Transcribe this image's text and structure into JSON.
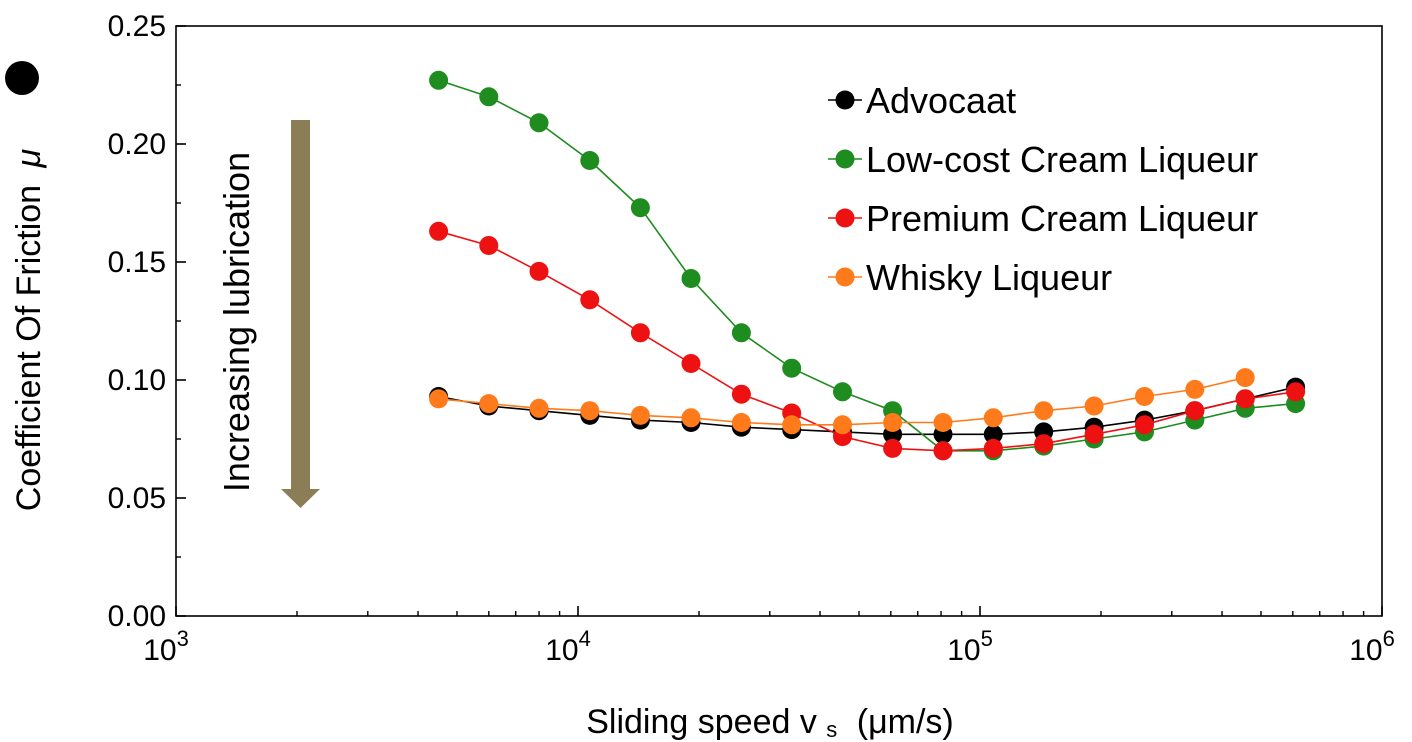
{
  "chart_data": {
    "type": "line",
    "xscale": "log",
    "xlim": [
      1000,
      1000000
    ],
    "ylim": [
      0,
      0.25
    ],
    "xticks": [
      {
        "base": "10",
        "exp": "3"
      },
      {
        "base": "10",
        "exp": "4"
      },
      {
        "base": "10",
        "exp": "5"
      },
      {
        "base": "10",
        "exp": "6"
      }
    ],
    "yticks": [
      "0.00",
      "0.05",
      "0.10",
      "0.15",
      "0.20",
      "0.25"
    ],
    "xlabel_main": "Sliding speed v",
    "xlabel_sub": "s",
    "xlabel_unit": "(μm/s)",
    "ylabel": "Coefficient Of Friction",
    "ylabel_symbol": "μ",
    "annotation": "Increasing lubrication",
    "arrow_color": "#8B7D55",
    "grid": false,
    "legend_position": "top-right",
    "x": [
      4500,
      6000,
      8000,
      10700,
      14300,
      19100,
      25500,
      34000,
      45500,
      60600,
      80900,
      107900,
      144000,
      192200,
      256500,
      342300,
      456800,
      609600
    ],
    "series": [
      {
        "name": "Advocaat",
        "color": "#000000",
        "values": [
          0.093,
          0.089,
          0.087,
          0.085,
          0.083,
          0.082,
          0.08,
          0.079,
          0.078,
          0.077,
          0.077,
          0.077,
          0.078,
          0.08,
          0.083,
          0.087,
          0.092,
          0.097
        ]
      },
      {
        "name": "Low-cost Cream Liqueur",
        "color": "#1E8C1E",
        "values": [
          0.227,
          0.22,
          0.209,
          0.193,
          0.173,
          0.143,
          0.12,
          0.105,
          0.095,
          0.087,
          0.07,
          0.07,
          0.072,
          0.075,
          0.078,
          0.083,
          0.088,
          0.09
        ]
      },
      {
        "name": "Premium Cream Liqueur",
        "color": "#EE1111",
        "values": [
          0.163,
          0.157,
          0.146,
          0.134,
          0.12,
          0.107,
          0.094,
          0.086,
          0.076,
          0.071,
          0.07,
          0.071,
          0.073,
          0.077,
          0.081,
          0.087,
          0.092,
          0.095
        ]
      },
      {
        "name": "Whisky Liqueur",
        "color": "#FF7A1A",
        "values": [
          0.092,
          0.09,
          0.088,
          0.087,
          0.085,
          0.084,
          0.082,
          0.081,
          0.081,
          0.082,
          0.082,
          0.084,
          0.087,
          0.089,
          0.093,
          0.096,
          0.101,
          null
        ]
      }
    ]
  }
}
